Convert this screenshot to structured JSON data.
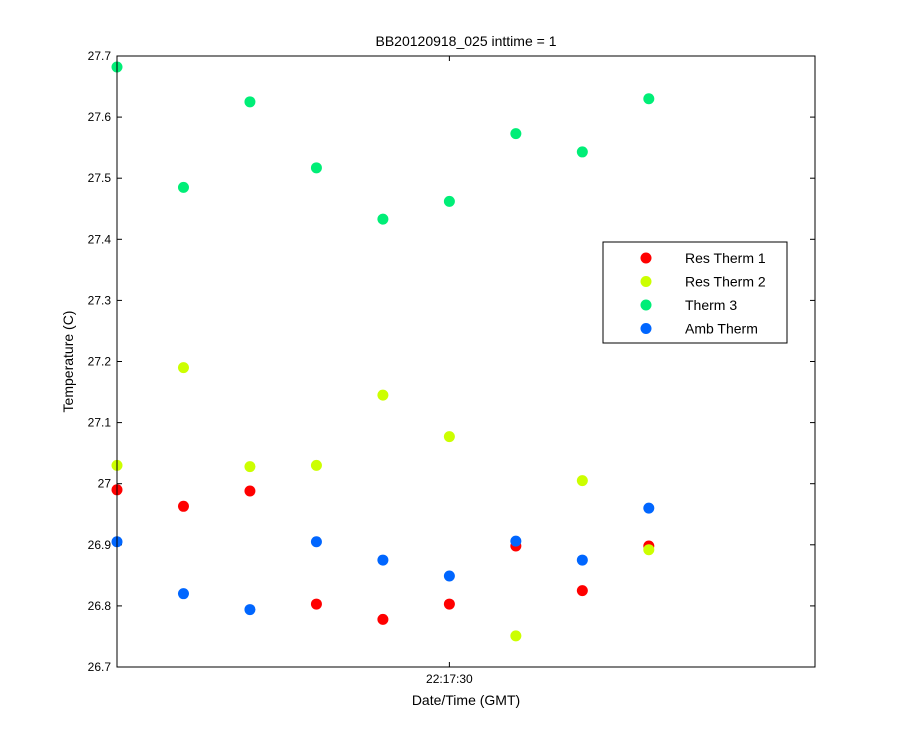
{
  "chart_data": {
    "type": "scatter",
    "title": "BB20120918_025 inttime = 1",
    "xlabel": "Date/Time (GMT)",
    "ylabel": "Temperature (C)",
    "x": [
      "22:17:20",
      "22:17:22",
      "22:17:24",
      "22:17:26",
      "22:17:28",
      "22:17:30",
      "22:17:32",
      "22:17:34",
      "22:17:36"
    ],
    "xlim": [
      "22:17:20",
      "22:17:41"
    ],
    "xticks": [
      "22:17:30"
    ],
    "ylim": [
      26.7,
      27.7
    ],
    "yticks": [
      "26.7",
      "26.8",
      "26.9",
      "27",
      "27.1",
      "27.2",
      "27.3",
      "27.4",
      "27.5",
      "27.6",
      "27.7"
    ],
    "series": [
      {
        "name": "Res Therm 1",
        "color": "#ff0000",
        "values": [
          26.99,
          26.963,
          26.988,
          26.803,
          26.778,
          26.803,
          26.898,
          26.825,
          26.898
        ]
      },
      {
        "name": "Res Therm 2",
        "color": "#ccff00",
        "values": [
          27.03,
          27.19,
          27.028,
          27.03,
          27.145,
          27.077,
          26.751,
          27.005,
          26.892
        ]
      },
      {
        "name": "Therm 3",
        "color": "#00ee77",
        "values": [
          27.682,
          27.485,
          27.625,
          27.517,
          27.433,
          27.462,
          27.573,
          27.543,
          27.63
        ]
      },
      {
        "name": "Amb Therm",
        "color": "#0066ff",
        "values": [
          26.905,
          26.82,
          26.794,
          26.905,
          26.875,
          26.849,
          26.906,
          26.875,
          26.96
        ]
      }
    ],
    "grid": false,
    "legend_position": "right"
  }
}
